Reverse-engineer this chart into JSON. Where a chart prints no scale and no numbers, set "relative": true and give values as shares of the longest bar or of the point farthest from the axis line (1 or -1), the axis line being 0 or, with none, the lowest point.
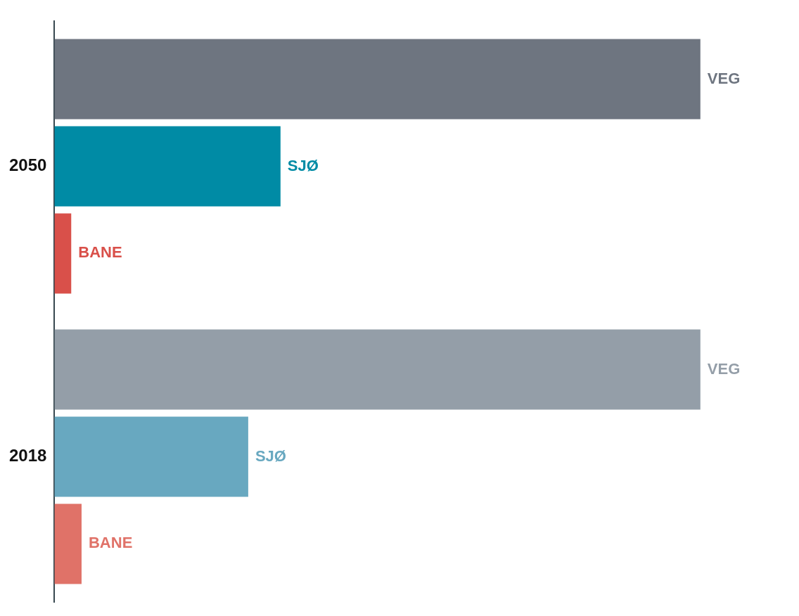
{
  "chart_data": {
    "type": "bar",
    "orientation": "horizontal",
    "relative": true,
    "legend": false,
    "grid": false,
    "categories": [
      "2050",
      "2018"
    ],
    "series": [
      {
        "name": "VEG",
        "colors": [
          "#6e7580",
          "#949ea8"
        ],
        "values": [
          1,
          1
        ]
      },
      {
        "name": "SJØ",
        "colors": [
          "#008ba5",
          "#68a8c0"
        ],
        "values": [
          0.35,
          0.3
        ]
      },
      {
        "name": "BANE",
        "colors": [
          "#d9504a",
          "#e07268"
        ],
        "values": [
          0.026,
          0.042
        ]
      }
    ]
  }
}
